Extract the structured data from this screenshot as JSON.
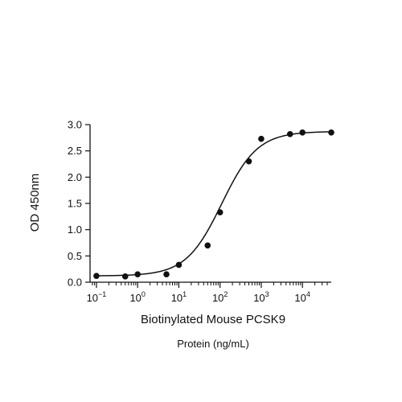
{
  "chart_data": {
    "type": "scatter",
    "title": "",
    "xlabel": "Biotinylated Mouse PCSK9",
    "xlabel_sub": "Protein (ng/mL)",
    "ylabel": "OD 450nm",
    "xscale": "log",
    "xlim": [
      0.07,
      50000
    ],
    "ylim": [
      0,
      3.0
    ],
    "grid": false,
    "legend": "none",
    "x_ticks": [
      {
        "value": 0.1,
        "base": "10",
        "exp": "−1"
      },
      {
        "value": 1,
        "base": "10",
        "exp": "0"
      },
      {
        "value": 10,
        "base": "10",
        "exp": "1"
      },
      {
        "value": 100,
        "base": "10",
        "exp": "2"
      },
      {
        "value": 1000,
        "base": "10",
        "exp": "3"
      },
      {
        "value": 10000,
        "base": "10",
        "exp": "4"
      }
    ],
    "y_ticks": [
      {
        "value": 0,
        "label": "0.0"
      },
      {
        "value": 0.5,
        "label": "0.5"
      },
      {
        "value": 1.0,
        "label": "1.0"
      },
      {
        "value": 1.5,
        "label": "1.5"
      },
      {
        "value": 2.0,
        "label": "2.0"
      },
      {
        "value": 2.5,
        "label": "2.5"
      },
      {
        "value": 3.0,
        "label": "3.0"
      }
    ],
    "series": [
      {
        "points": [
          {
            "x": 0.1,
            "y": 0.12
          },
          {
            "x": 0.5,
            "y": 0.11
          },
          {
            "x": 1,
            "y": 0.15
          },
          {
            "x": 5,
            "y": 0.15
          },
          {
            "x": 10,
            "y": 0.33
          },
          {
            "x": 50,
            "y": 0.7
          },
          {
            "x": 100,
            "y": 1.33
          },
          {
            "x": 500,
            "y": 2.3
          },
          {
            "x": 1000,
            "y": 2.73
          },
          {
            "x": 5000,
            "y": 2.82
          },
          {
            "x": 10000,
            "y": 2.85
          },
          {
            "x": 50000,
            "y": 2.85
          }
        ],
        "fit": {
          "model": "4PL",
          "bottom": 0.12,
          "top": 2.87,
          "ec50": 110,
          "hill": 1.0
        }
      }
    ],
    "colors": {
      "marker": "#111111",
      "line": "#111111",
      "axis": "#111111"
    }
  }
}
